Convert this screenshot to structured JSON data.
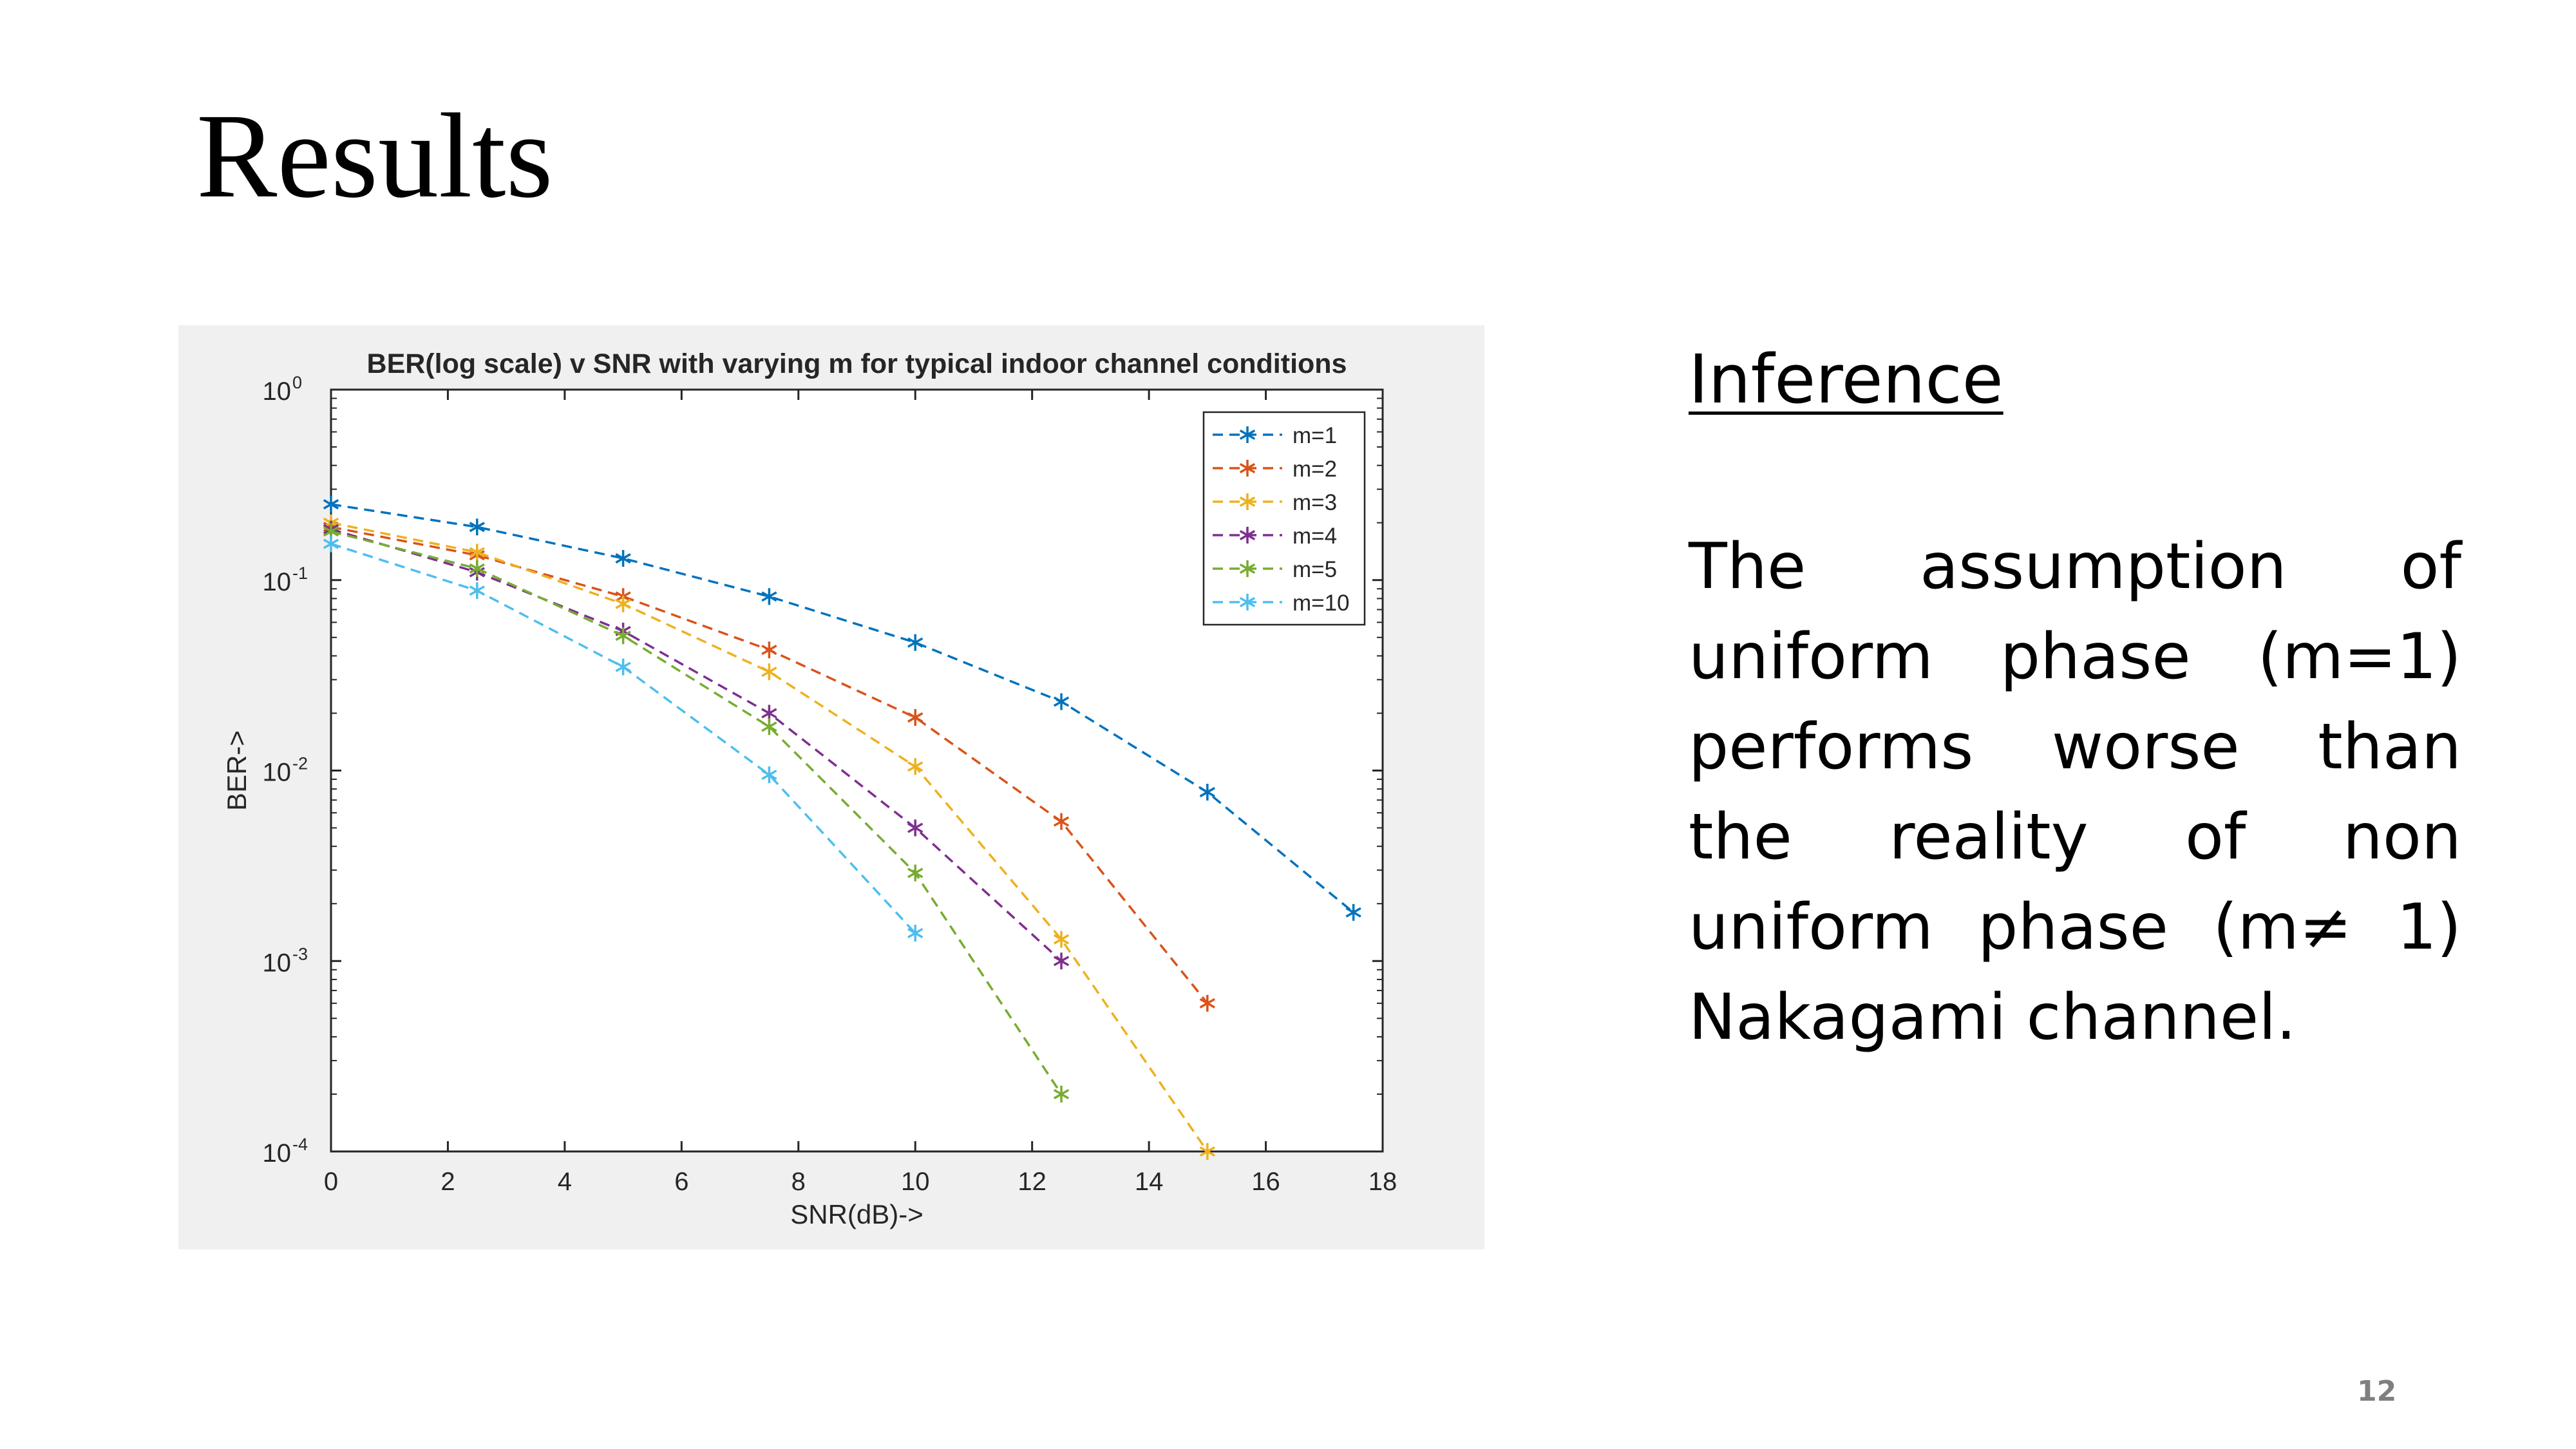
{
  "slide": {
    "title": "Results",
    "inference_heading": "Inference",
    "inference_text": "The assumption of uniform phase (m=1) performs worse than the reality of non uniform phase (m≠ 1) Nakagami channel.",
    "page_number": "12"
  },
  "chart_data": {
    "type": "line",
    "title": "BER(log scale) v SNR with varying m for typical indoor channel conditions",
    "xlabel": "SNR(dB)->",
    "ylabel": "BER->",
    "xlim": [
      0,
      18
    ],
    "ylim": [
      0.0001,
      1
    ],
    "yscale": "log",
    "xticks": [
      "0",
      "2",
      "4",
      "6",
      "8",
      "10",
      "12",
      "14",
      "16",
      "18"
    ],
    "yticks": [
      {
        "base": "10",
        "exp": "0",
        "value": 1
      },
      {
        "base": "10",
        "exp": "-1",
        "value": 0.1
      },
      {
        "base": "10",
        "exp": "-2",
        "value": 0.01
      },
      {
        "base": "10",
        "exp": "-3",
        "value": 0.001
      },
      {
        "base": "10",
        "exp": "-4",
        "value": 0.0001
      }
    ],
    "grid": false,
    "legend_position": "top-right",
    "series": [
      {
        "name": "m=1",
        "color": "#0072BD",
        "x": [
          0,
          2.5,
          5,
          7.5,
          10,
          12.5,
          15,
          17.5
        ],
        "y": [
          0.25,
          0.19,
          0.13,
          0.082,
          0.047,
          0.023,
          0.0077,
          0.0018
        ]
      },
      {
        "name": "m=2",
        "color": "#D95319",
        "x": [
          0,
          2.5,
          5,
          7.5,
          10,
          12.5,
          15
        ],
        "y": [
          0.19,
          0.135,
          0.082,
          0.043,
          0.019,
          0.0054,
          0.0006
        ]
      },
      {
        "name": "m=3",
        "color": "#EDB120",
        "x": [
          0,
          2.5,
          5,
          7.5,
          10,
          12.5,
          15
        ],
        "y": [
          0.2,
          0.14,
          0.075,
          0.033,
          0.0105,
          0.0013,
          0.0001
        ]
      },
      {
        "name": "m=4",
        "color": "#7E2F8E",
        "x": [
          0,
          2.5,
          5,
          7.5,
          10,
          12.5
        ],
        "y": [
          0.185,
          0.11,
          0.054,
          0.02,
          0.005,
          0.001
        ]
      },
      {
        "name": "m=5",
        "color": "#77AC30",
        "x": [
          0,
          2.5,
          5,
          7.5,
          10,
          12.5
        ],
        "y": [
          0.18,
          0.115,
          0.051,
          0.017,
          0.0029,
          0.0002
        ]
      },
      {
        "name": "m=10",
        "color": "#4DBEEE",
        "x": [
          0,
          2.5,
          5,
          7.5,
          10
        ],
        "y": [
          0.155,
          0.088,
          0.035,
          0.0095,
          0.0014
        ]
      }
    ]
  }
}
